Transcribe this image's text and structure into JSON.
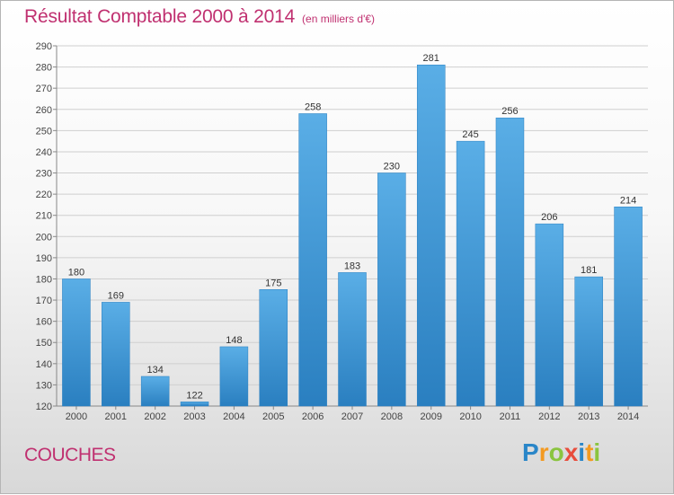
{
  "header": {
    "title": "Résultat Comptable 2000 à 2014",
    "subtitle": "(en milliers d'€)"
  },
  "footer": {
    "place": "COUCHES",
    "logo_letters": [
      "P",
      "r",
      "o",
      "x",
      "i",
      "t",
      "i"
    ]
  },
  "colors": {
    "title": "#c03070",
    "bar": "#4ea3de",
    "bar_dark": "#2a7fc0",
    "grid": "#cfcfcf"
  },
  "chart_data": {
    "type": "bar",
    "title": "Résultat Comptable 2000 à 2014",
    "subtitle": "(en milliers d'€)",
    "xlabel": "",
    "ylabel": "",
    "categories": [
      "2000",
      "2001",
      "2002",
      "2003",
      "2004",
      "2005",
      "2006",
      "2007",
      "2008",
      "2009",
      "2010",
      "2011",
      "2012",
      "2013",
      "2014"
    ],
    "values": [
      180,
      169,
      134,
      122,
      148,
      175,
      258,
      183,
      230,
      281,
      245,
      256,
      206,
      181,
      214
    ],
    "ylim": [
      120,
      290
    ],
    "yticks": [
      120,
      130,
      140,
      150,
      160,
      170,
      180,
      190,
      200,
      210,
      220,
      230,
      240,
      250,
      260,
      270,
      280,
      290
    ],
    "grid": true,
    "legend": "none"
  }
}
